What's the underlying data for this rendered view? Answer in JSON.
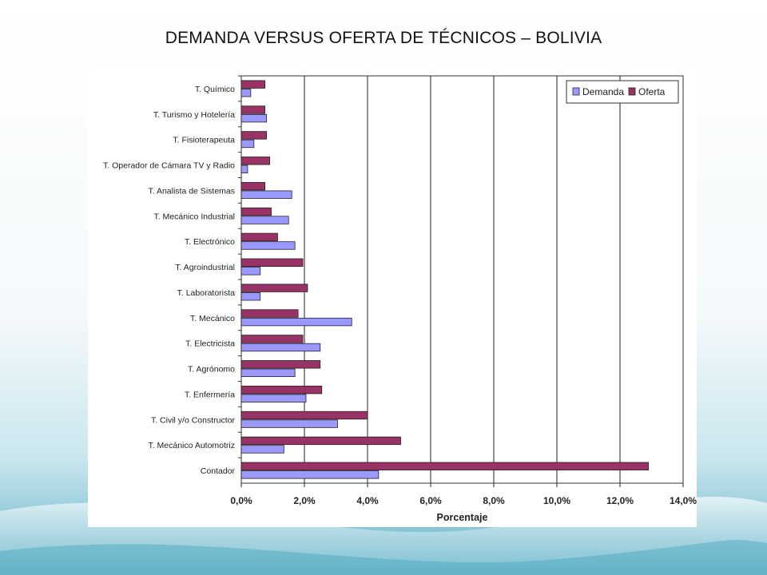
{
  "slide": {
    "title": "DEMANDA VERSUS OFERTA DE TÉCNICOS – BOLIVIA"
  },
  "chart_data": {
    "type": "bar",
    "orientation": "horizontal",
    "categories": [
      "T. Químico",
      "T. Turismo y Hotelería",
      "T. Fisioterapeuta",
      "T. Operador de Cámara TV y Radio",
      "T. Analista de Sistemas",
      "T. Mecánico Industrial",
      "T. Electrónico",
      "T. Agroindustrial",
      "T. Laboratorista",
      "T. Mecánico",
      "T. Electricista",
      "T. Agrónomo",
      "T. Enfermería",
      "T. Civil y/o Constructor",
      "T. Mecánico Automotriz",
      "Contador"
    ],
    "series": [
      {
        "name": "Demanda",
        "color": "#9999ff",
        "values": [
          0.3,
          0.8,
          0.4,
          0.2,
          1.6,
          1.5,
          1.7,
          0.6,
          0.6,
          3.5,
          2.5,
          1.7,
          2.05,
          3.05,
          1.35,
          4.35
        ]
      },
      {
        "name": "Oferta",
        "color": "#993366",
        "values": [
          0.75,
          0.75,
          0.8,
          0.9,
          0.75,
          0.95,
          1.15,
          1.95,
          2.1,
          1.8,
          1.95,
          2.5,
          2.55,
          4.0,
          5.05,
          12.9
        ]
      }
    ],
    "xlabel": "Porcentaje",
    "ylabel": "",
    "xlim": [
      0,
      14
    ],
    "xticks": [
      "0,0%",
      "2,0%",
      "4,0%",
      "6,0%",
      "8,0%",
      "10,0%",
      "12,0%",
      "14,0%"
    ],
    "grid": true,
    "legend_position": "top-right"
  }
}
